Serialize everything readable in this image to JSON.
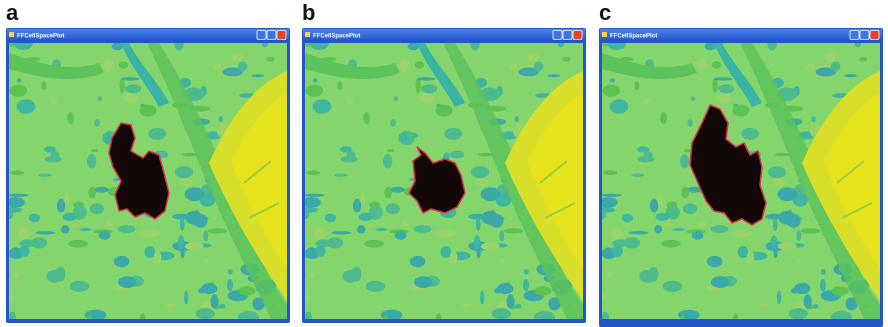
{
  "panels": [
    {
      "label": "a",
      "window_title": "FFCellSpacePlot"
    },
    {
      "label": "b",
      "window_title": "FFCellSpacePlot"
    },
    {
      "label": "c",
      "window_title": "FFCellSpacePlot"
    }
  ]
}
